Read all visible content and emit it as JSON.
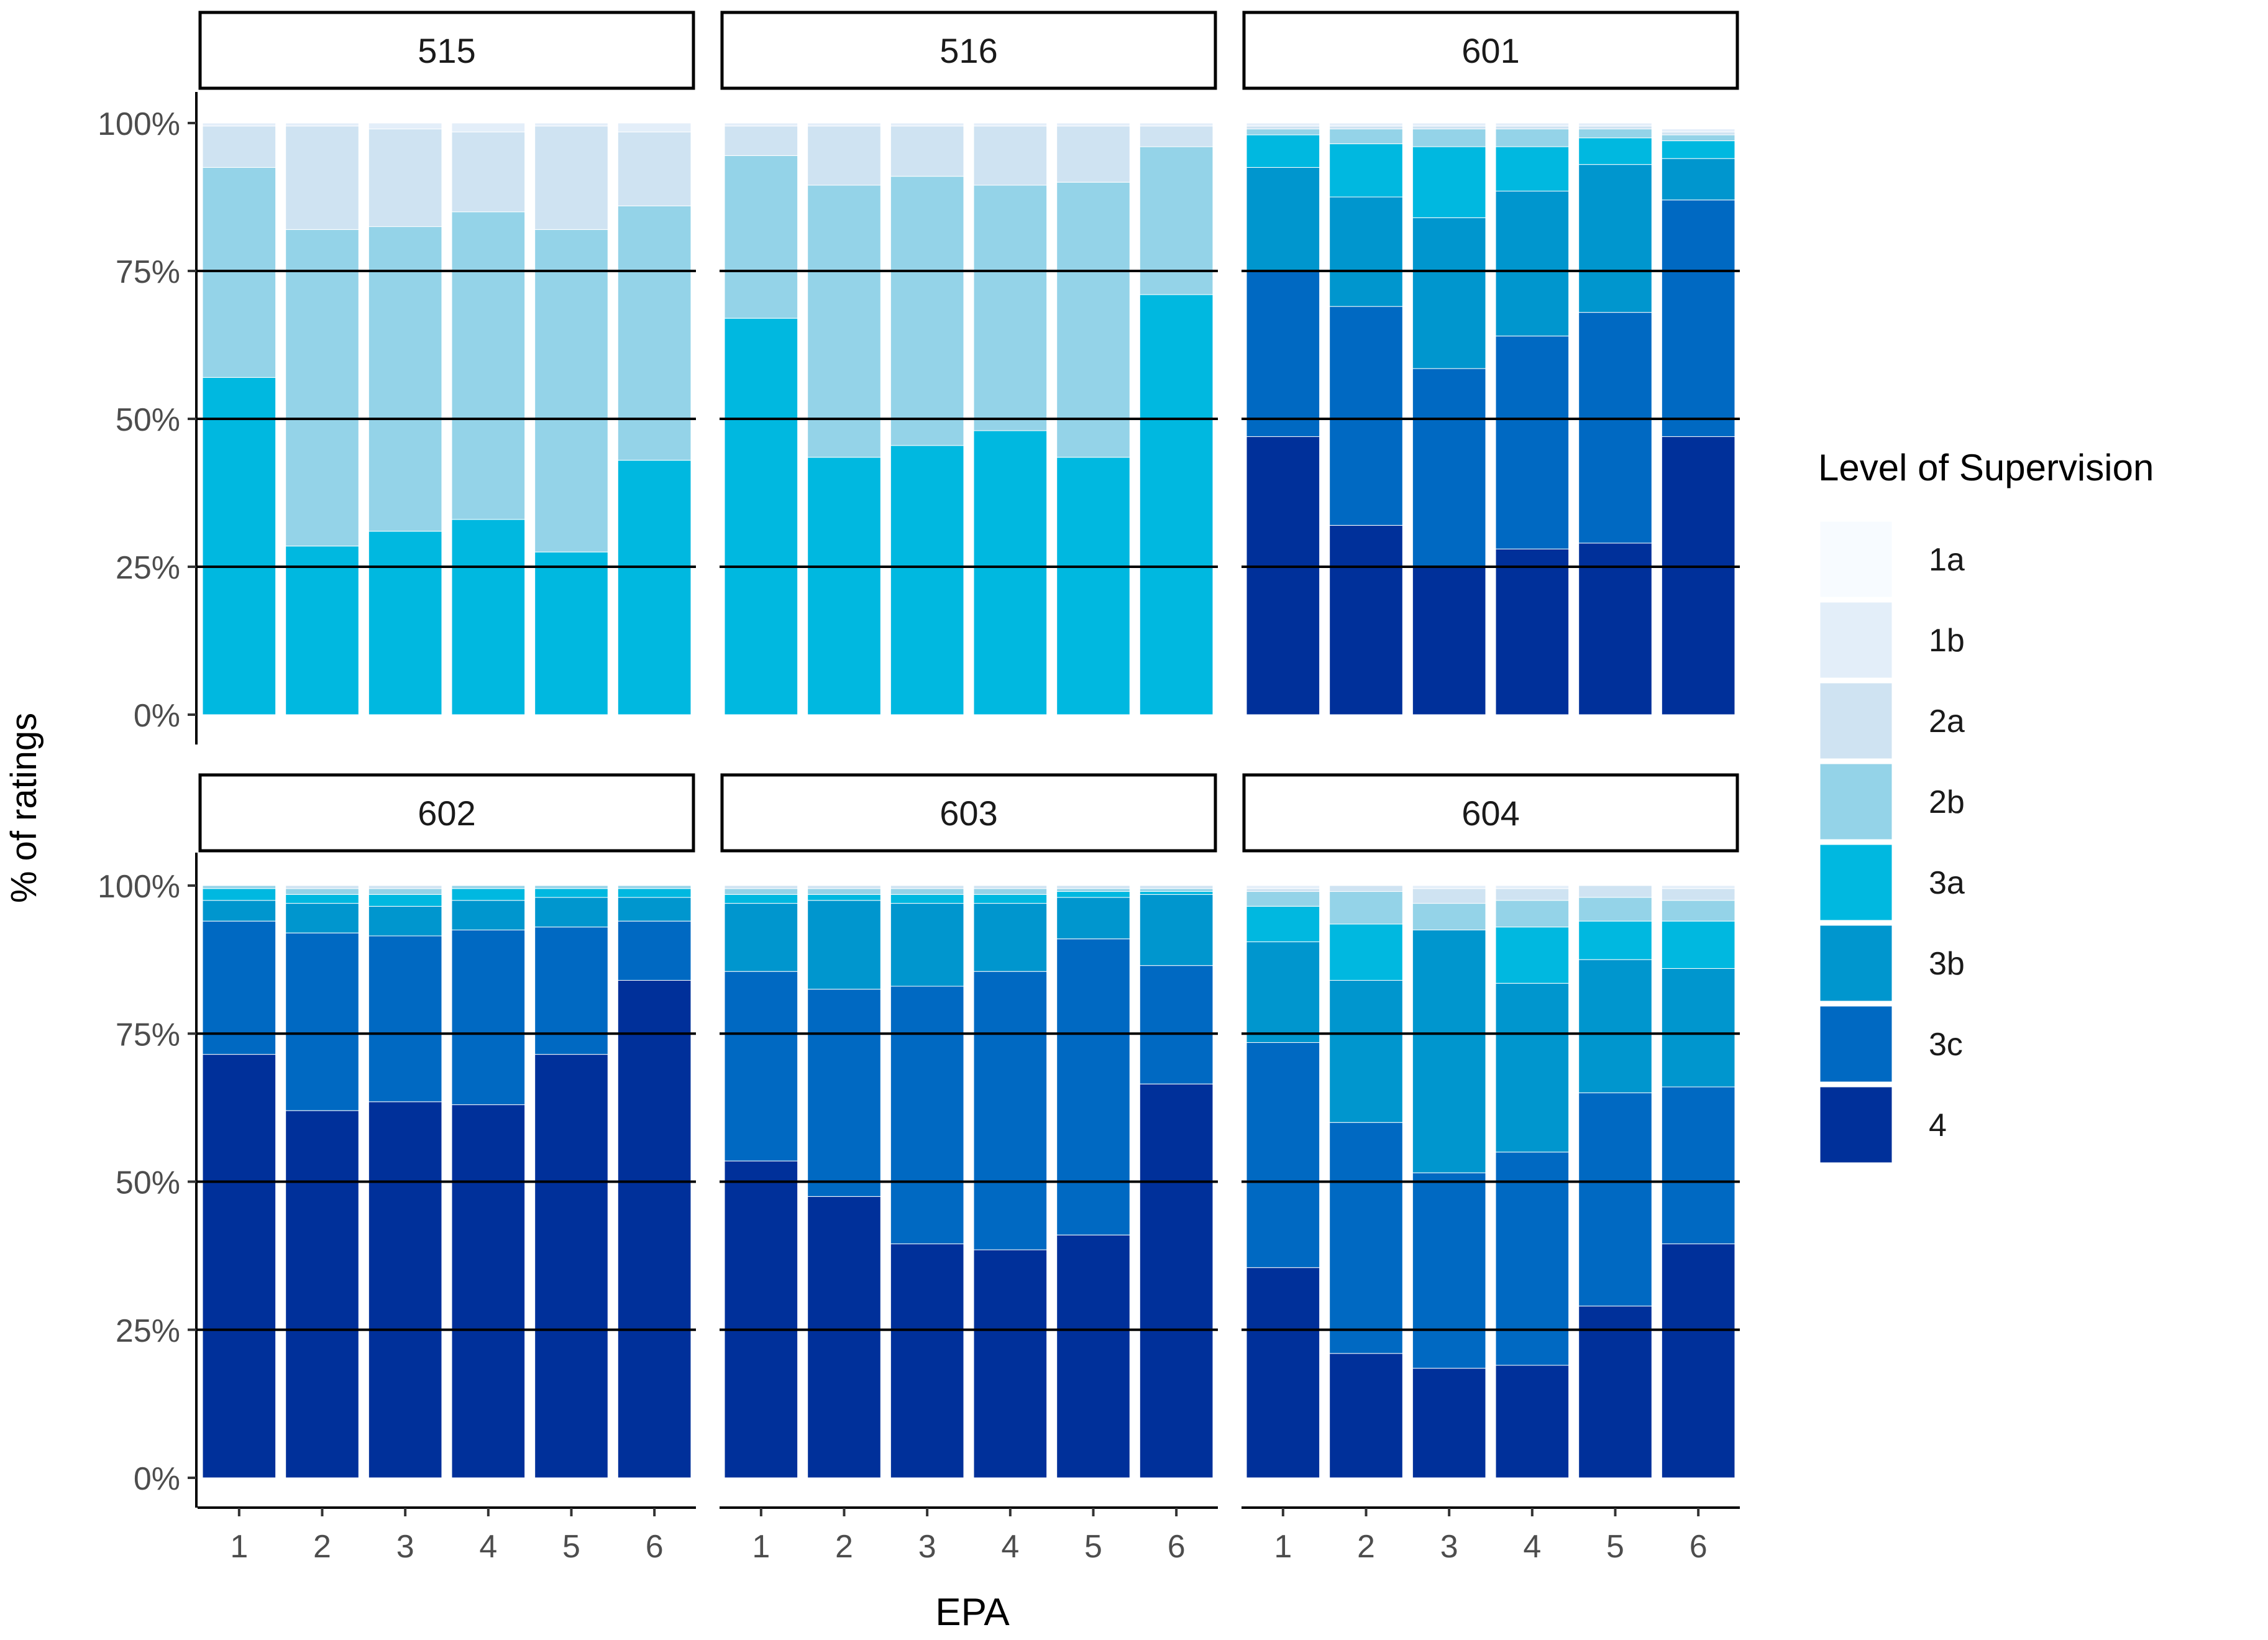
{
  "chart_data": {
    "type": "bar",
    "stacked": true,
    "facet_by": "program",
    "xlabel": "EPA",
    "ylabel": "% of ratings",
    "ylim": [
      0,
      100
    ],
    "y_ticks": [
      "0%",
      "25%",
      "50%",
      "75%",
      "100%"
    ],
    "y_tick_values": [
      0,
      25,
      50,
      75,
      100
    ],
    "categories": [
      "1",
      "2",
      "3",
      "4",
      "5",
      "6"
    ],
    "gridlines": [
      25,
      50,
      75
    ],
    "legend": {
      "title": "Level of Supervision",
      "position": "right",
      "levels": [
        "1a",
        "1b",
        "2a",
        "2b",
        "3a",
        "3b",
        "3c",
        "4"
      ],
      "colors": [
        "#f7fbff",
        "#e3eef9",
        "#cfe3f2",
        "#94d3e8",
        "#00b8e0",
        "#0096ce",
        "#0069c2",
        "#00309a"
      ]
    },
    "stack_order_bottom_to_top": [
      "4",
      "3c",
      "3b",
      "3a",
      "2b",
      "2a",
      "1b",
      "1a"
    ],
    "facets": [
      {
        "label": "515",
        "series": [
          {
            "name": "4",
            "values": [
              0,
              0,
              0,
              0,
              0,
              0
            ]
          },
          {
            "name": "3c",
            "values": [
              0,
              0,
              0,
              0,
              0,
              0
            ]
          },
          {
            "name": "3b",
            "values": [
              0,
              0,
              0,
              0,
              0,
              0
            ]
          },
          {
            "name": "3a",
            "values": [
              57,
              28.5,
              31,
              33,
              27.5,
              43
            ]
          },
          {
            "name": "2b",
            "values": [
              35.5,
              53.5,
              51.5,
              52,
              54.5,
              43
            ]
          },
          {
            "name": "2a",
            "values": [
              7,
              17.5,
              16.5,
              13.5,
              17.5,
              12.5
            ]
          },
          {
            "name": "1b",
            "values": [
              0.5,
              0.5,
              1,
              1.5,
              0.5,
              1.5
            ]
          },
          {
            "name": "1a",
            "values": [
              0,
              0,
              0,
              0,
              0,
              0
            ]
          }
        ]
      },
      {
        "label": "516",
        "series": [
          {
            "name": "4",
            "values": [
              0,
              0,
              0,
              0,
              0,
              0
            ]
          },
          {
            "name": "3c",
            "values": [
              0,
              0,
              0,
              0,
              0,
              0
            ]
          },
          {
            "name": "3b",
            "values": [
              0,
              0,
              0,
              0,
              0,
              0
            ]
          },
          {
            "name": "3a",
            "values": [
              67,
              43.5,
              45.5,
              48,
              43.5,
              71
            ]
          },
          {
            "name": "2b",
            "values": [
              27.5,
              46,
              45.5,
              41.5,
              46.5,
              25
            ]
          },
          {
            "name": "2a",
            "values": [
              5,
              10,
              8.5,
              10,
              9.5,
              3.5
            ]
          },
          {
            "name": "1b",
            "values": [
              0.5,
              0.5,
              0.5,
              0.5,
              0.5,
              0.5
            ]
          },
          {
            "name": "1a",
            "values": [
              0,
              0,
              0,
              0,
              0,
              0
            ]
          }
        ]
      },
      {
        "label": "601",
        "series": [
          {
            "name": "4",
            "values": [
              47,
              32,
              25,
              28,
              29,
              47
            ]
          },
          {
            "name": "3c",
            "values": [
              28,
              37,
              33.5,
              36,
              39,
              40
            ]
          },
          {
            "name": "3b",
            "values": [
              17.5,
              18.5,
              25.5,
              24.5,
              25,
              7
            ]
          },
          {
            "name": "3a",
            "values": [
              5.5,
              9,
              12,
              7.5,
              4.5,
              3
            ]
          },
          {
            "name": "2b",
            "values": [
              1,
              2.5,
              3,
              3,
              1.5,
              1
            ]
          },
          {
            "name": "2a",
            "values": [
              0.5,
              0.5,
              0.5,
              0.5,
              0.5,
              0.5
            ]
          },
          {
            "name": "1b",
            "values": [
              0.5,
              0.5,
              0.5,
              0.5,
              0.5,
              0.5
            ]
          },
          {
            "name": "1a",
            "values": [
              0,
              0,
              0,
              0,
              0,
              0
            ]
          }
        ]
      },
      {
        "label": "602",
        "series": [
          {
            "name": "4",
            "values": [
              71.5,
              62,
              63.5,
              63,
              71.5,
              84
            ]
          },
          {
            "name": "3c",
            "values": [
              22.5,
              30,
              28,
              29.5,
              21.5,
              10
            ]
          },
          {
            "name": "3b",
            "values": [
              3.5,
              5,
              5,
              5,
              5,
              4
            ]
          },
          {
            "name": "3a",
            "values": [
              2,
              1.5,
              2,
              2,
              1.5,
              1.5
            ]
          },
          {
            "name": "2b",
            "values": [
              0.5,
              1,
              1,
              0.5,
              0.5,
              0.5
            ]
          },
          {
            "name": "2a",
            "values": [
              0,
              0.5,
              0.5,
              0,
              0,
              0
            ]
          },
          {
            "name": "1b",
            "values": [
              0,
              0,
              0,
              0,
              0,
              0
            ]
          },
          {
            "name": "1a",
            "values": [
              0,
              0,
              0,
              0,
              0,
              0
            ]
          }
        ]
      },
      {
        "label": "603",
        "series": [
          {
            "name": "4",
            "values": [
              53.5,
              47.5,
              39.5,
              38.5,
              41,
              66.5
            ]
          },
          {
            "name": "3c",
            "values": [
              32,
              35,
              43.5,
              47,
              50,
              20
            ]
          },
          {
            "name": "3b",
            "values": [
              11.5,
              15,
              14,
              11.5,
              7,
              12
            ]
          },
          {
            "name": "3a",
            "values": [
              1.5,
              1,
              1.5,
              1.5,
              1,
              0.5
            ]
          },
          {
            "name": "2b",
            "values": [
              1,
              1,
              1,
              1,
              0.5,
              0.5
            ]
          },
          {
            "name": "2a",
            "values": [
              0.5,
              0.5,
              0.5,
              0.5,
              0.5,
              0.5
            ]
          },
          {
            "name": "1b",
            "values": [
              0,
              0,
              0,
              0,
              0,
              0
            ]
          },
          {
            "name": "1a",
            "values": [
              0,
              0,
              0,
              0,
              0,
              0
            ]
          }
        ]
      },
      {
        "label": "604",
        "series": [
          {
            "name": "4",
            "values": [
              35.5,
              21,
              18.5,
              19,
              29,
              39.5
            ]
          },
          {
            "name": "3c",
            "values": [
              38,
              39,
              33,
              36,
              36,
              26.5
            ]
          },
          {
            "name": "3b",
            "values": [
              17,
              24,
              41,
              28.5,
              22.5,
              20
            ]
          },
          {
            "name": "3a",
            "values": [
              6,
              9.5,
              0,
              9.5,
              6.5,
              8
            ]
          },
          {
            "name": "2b",
            "values": [
              2.5,
              5.5,
              4.5,
              4.5,
              4,
              3.5
            ]
          },
          {
            "name": "2a",
            "values": [
              0.5,
              1,
              2.5,
              2,
              2,
              2
            ]
          },
          {
            "name": "1b",
            "values": [
              0.5,
              0,
              0.5,
              0.5,
              0,
              0.5
            ]
          },
          {
            "name": "1a",
            "values": [
              0,
              0,
              0,
              0,
              0,
              0
            ]
          }
        ]
      }
    ]
  }
}
